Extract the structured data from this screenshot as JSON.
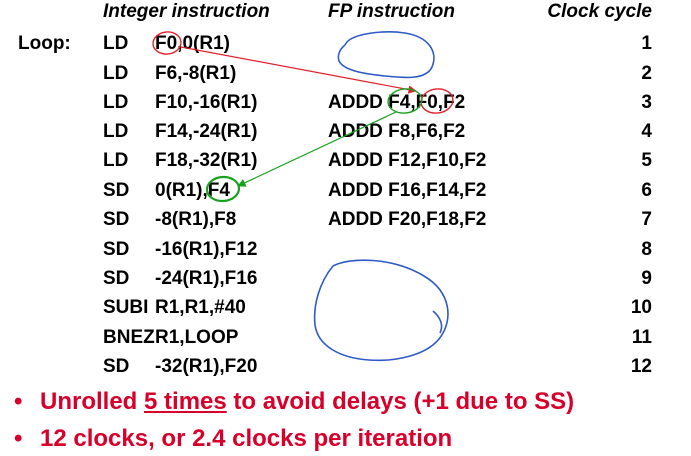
{
  "headers": {
    "integer": "Integer instruction",
    "fp": "FP instruction",
    "clock": "Clock cycle"
  },
  "loop_label": "Loop:",
  "rows": [
    {
      "op": "LD",
      "args": "F0,0(R1)",
      "fp": "",
      "clock": "1"
    },
    {
      "op": "LD",
      "args": "F6,-8(R1)",
      "fp": "",
      "clock": "2"
    },
    {
      "op": "LD",
      "args": "F10,-16(R1)",
      "fp": "ADDD F4,F0,F2",
      "clock": "3"
    },
    {
      "op": "LD",
      "args": "F14,-24(R1)",
      "fp": "ADDD F8,F6,F2",
      "clock": "4"
    },
    {
      "op": "LD",
      "args": "F18,-32(R1)",
      "fp": "ADDD F12,F10,F2",
      "clock": "5"
    },
    {
      "op": "SD",
      "args": "0(R1),F4",
      "fp": "ADDD F16,F14,F2",
      "clock": "6"
    },
    {
      "op": "SD",
      "args": "-8(R1),F8",
      "fp": "ADDD F20,F18,F2",
      "clock": "7"
    },
    {
      "op": "SD",
      "args": "-16(R1),F12",
      "fp": "",
      "clock": "8"
    },
    {
      "op": "SD",
      "args": "-24(R1),F16",
      "fp": "",
      "clock": "9"
    },
    {
      "op": "SUBI",
      "args": "R1,R1,#40",
      "fp": "",
      "clock": "10"
    },
    {
      "op": "BNEZ",
      "args": "R1,LOOP",
      "fp": "",
      "clock": "11"
    },
    {
      "op": "SD",
      "args": "-32(R1),F20",
      "fp": "",
      "clock": "12"
    }
  ],
  "bullets": {
    "b1_pre": "Unrolled ",
    "b1_underlined": "5 times",
    "b1_post": " to avoid delays (+1 due to SS)",
    "b2": "12 clocks, or 2.4 clocks per iteration",
    "marker": "•"
  },
  "colors": {
    "text": "#000000",
    "bullet_text": "#d8002a",
    "red_ink": "#e0202a",
    "green_ink": "#19a01e",
    "blue_ink": "#2f5bc7"
  }
}
